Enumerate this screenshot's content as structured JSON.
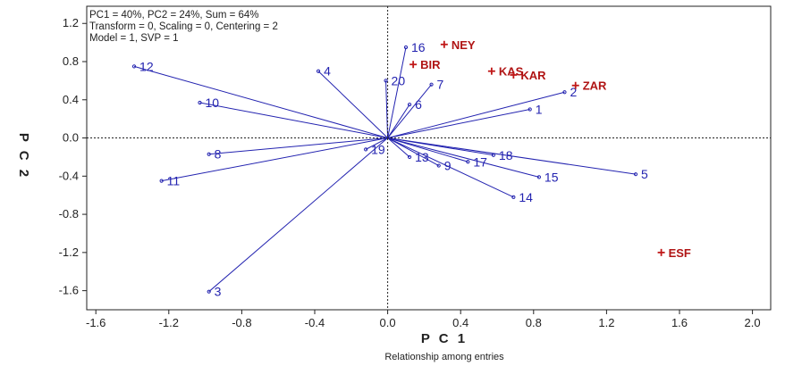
{
  "chart_data": {
    "type": "scatter",
    "caption": "Relationship among entries",
    "header_lines": [
      "PC1 = 40%, PC2 = 24%, Sum = 64%",
      "Transform = 0, Scaling = 0, Centering = 2",
      "Model = 1, SVP = 1"
    ],
    "xlabel": "P C 1",
    "ylabel": "P C 2",
    "xlim": [
      -1.65,
      2.1
    ],
    "ylim": [
      -1.8,
      1.38
    ],
    "x_ticks": [
      "-1.6",
      "-1.2",
      "-0.8",
      "-0.4",
      "0.0",
      "0.4",
      "0.8",
      "1.2",
      "1.6",
      "2.0"
    ],
    "y_ticks": [
      "1.2",
      "0.8",
      "0.4",
      "0.0",
      "-0.4",
      "-0.8",
      "-1.2",
      "-1.6"
    ],
    "grid": false,
    "reference_lines": [
      "x=0",
      "y=0"
    ],
    "colors": {
      "entry": "#2323b0",
      "tester": "#c01818",
      "axis": "#222222"
    },
    "entries": [
      {
        "label": "1",
        "x": 0.78,
        "y": 0.3
      },
      {
        "label": "2",
        "x": 0.97,
        "y": 0.48
      },
      {
        "label": "3",
        "x": -0.98,
        "y": -1.61
      },
      {
        "label": "4",
        "x": -0.38,
        "y": 0.7
      },
      {
        "label": "5",
        "x": 1.36,
        "y": -0.38
      },
      {
        "label": "6",
        "x": 0.12,
        "y": 0.35
      },
      {
        "label": "7",
        "x": 0.24,
        "y": 0.56
      },
      {
        "label": "8",
        "x": -0.98,
        "y": -0.17
      },
      {
        "label": "9",
        "x": 0.28,
        "y": -0.29
      },
      {
        "label": "10",
        "x": -1.03,
        "y": 0.37
      },
      {
        "label": "11",
        "x": -1.24,
        "y": -0.45
      },
      {
        "label": "12",
        "x": -1.39,
        "y": 0.75
      },
      {
        "label": "13",
        "x": 0.12,
        "y": -0.2
      },
      {
        "label": "14",
        "x": 0.69,
        "y": -0.62
      },
      {
        "label": "15",
        "x": 0.83,
        "y": -0.41
      },
      {
        "label": "16",
        "x": 0.1,
        "y": 0.95
      },
      {
        "label": "17",
        "x": 0.44,
        "y": -0.25
      },
      {
        "label": "18",
        "x": 0.58,
        "y": -0.18
      },
      {
        "label": "19",
        "x": -0.12,
        "y": -0.12
      },
      {
        "label": "20",
        "x": -0.01,
        "y": 0.6
      }
    ],
    "testers": [
      {
        "label": "NEY",
        "x": 0.31,
        "y": 0.98
      },
      {
        "label": "BIR",
        "x": 0.14,
        "y": 0.77
      },
      {
        "label": "KAS",
        "x": 0.57,
        "y": 0.7
      },
      {
        "label": "KAR",
        "x": 0.69,
        "y": 0.66
      },
      {
        "label": "ZAR",
        "x": 1.03,
        "y": 0.55
      },
      {
        "label": "ESF",
        "x": 1.5,
        "y": -1.2
      }
    ]
  }
}
